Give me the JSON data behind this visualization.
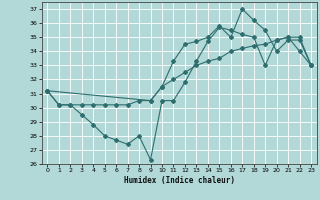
{
  "xlabel": "Humidex (Indice chaleur)",
  "xlim": [
    -0.5,
    23.5
  ],
  "ylim": [
    26,
    37.5
  ],
  "yticks": [
    26,
    27,
    28,
    29,
    30,
    31,
    32,
    33,
    34,
    35,
    36,
    37
  ],
  "xticks": [
    0,
    1,
    2,
    3,
    4,
    5,
    6,
    7,
    8,
    9,
    10,
    11,
    12,
    13,
    14,
    15,
    16,
    17,
    18,
    19,
    20,
    21,
    22,
    23
  ],
  "bg_color": "#b2d8d8",
  "grid_color": "#ffffff",
  "line_color": "#2e6e6e",
  "line1_x": [
    0,
    1,
    2,
    3,
    4,
    5,
    6,
    7,
    8,
    9,
    10,
    11,
    12,
    13,
    14,
    15,
    16,
    17,
    18,
    19,
    20,
    21,
    22,
    23
  ],
  "line1_y": [
    31.2,
    30.2,
    30.2,
    29.5,
    28.8,
    28.0,
    27.7,
    27.4,
    28.0,
    26.3,
    30.5,
    30.5,
    31.8,
    33.3,
    34.7,
    35.7,
    35.5,
    35.2,
    35.0,
    33.0,
    34.8,
    35.0,
    34.0,
    33.0
  ],
  "line2_x": [
    0,
    1,
    2,
    3,
    4,
    5,
    6,
    7,
    8,
    9,
    10,
    11,
    12,
    13,
    14,
    15,
    16,
    17,
    18,
    19,
    20,
    21,
    22,
    23
  ],
  "line2_y": [
    31.2,
    30.2,
    30.2,
    30.2,
    30.2,
    30.2,
    30.2,
    30.2,
    30.5,
    30.5,
    31.5,
    32.0,
    32.5,
    33.0,
    33.3,
    33.5,
    34.0,
    34.2,
    34.4,
    34.5,
    34.8,
    35.0,
    35.0,
    33.0
  ],
  "line3_x": [
    0,
    9,
    10,
    11,
    12,
    13,
    14,
    15,
    16,
    17,
    18,
    19,
    20,
    21,
    22,
    23
  ],
  "line3_y": [
    31.2,
    30.5,
    31.5,
    33.3,
    34.5,
    34.7,
    35.0,
    35.8,
    35.0,
    37.0,
    36.2,
    35.5,
    34.0,
    34.8,
    34.8,
    33.0
  ]
}
